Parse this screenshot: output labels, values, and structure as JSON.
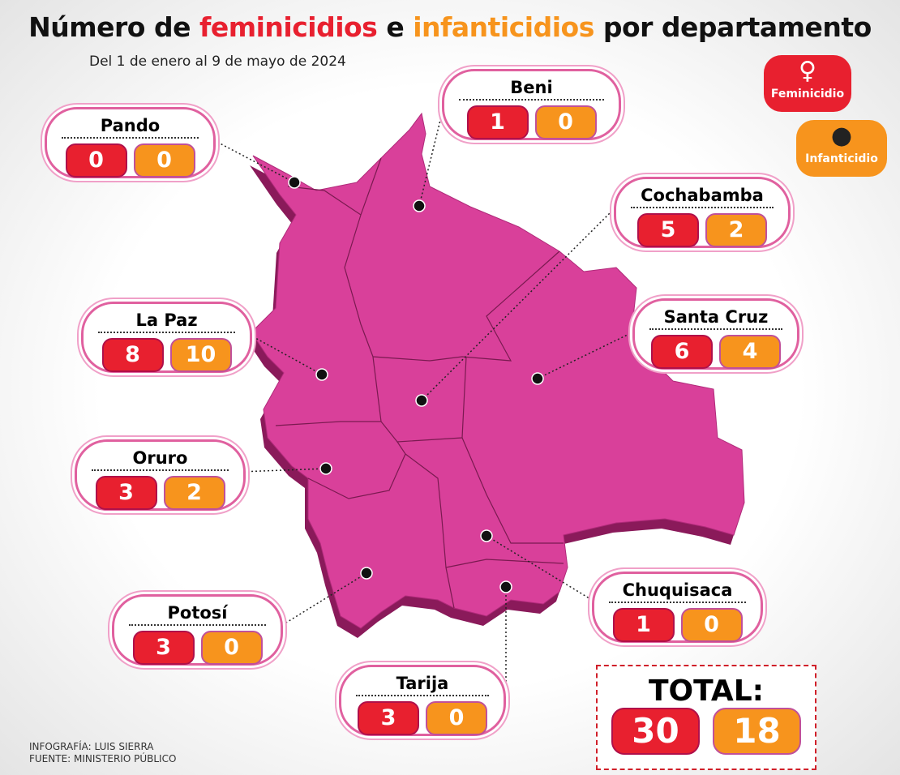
{
  "header": {
    "title": [
      "Número de",
      "feminicidios",
      "e",
      "infanticidios",
      "por departamento"
    ],
    "subtitle": "Del 1 de enero al 9 de mayo de 2024"
  },
  "legend": {
    "feminicidio": "Feminicidio",
    "infanticidio": "Infanticidio"
  },
  "departments": [
    {
      "name": "Pando",
      "feminicidios": "0",
      "infanticidios": "0"
    },
    {
      "name": "Beni",
      "feminicidios": "1",
      "infanticidios": "0"
    },
    {
      "name": "Cochabamba",
      "feminicidios": "5",
      "infanticidios": "2"
    },
    {
      "name": "La Paz",
      "feminicidios": "8",
      "infanticidios": "10"
    },
    {
      "name": "Santa Cruz",
      "feminicidios": "6",
      "infanticidios": "4"
    },
    {
      "name": "Oruro",
      "feminicidios": "3",
      "infanticidios": "2"
    },
    {
      "name": "Potosí",
      "feminicidios": "3",
      "infanticidios": "0"
    },
    {
      "name": "Chuquisaca",
      "feminicidios": "1",
      "infanticidios": "0"
    },
    {
      "name": "Tarija",
      "feminicidios": "3",
      "infanticidios": "0"
    }
  ],
  "total": {
    "label": "TOTAL:",
    "feminicidios": "30",
    "infanticidios": "18"
  },
  "credits": [
    "INFOGRAFÍA: LUIS SIERRA",
    "FUENTE: MINISTERIO PÚBLICO"
  ]
}
